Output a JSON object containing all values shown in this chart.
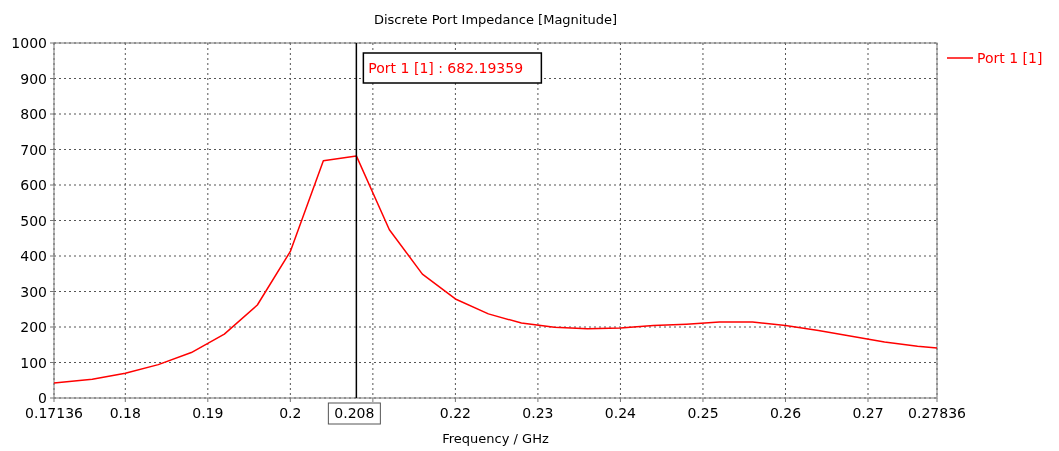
{
  "chart_data": {
    "type": "line",
    "title": "Discrete Port Impedance [Magnitude]",
    "xlabel": "Frequency / GHz",
    "x": [
      0.17136,
      0.176,
      0.18,
      0.184,
      0.188,
      0.192,
      0.196,
      0.2,
      0.204,
      0.208,
      0.212,
      0.216,
      0.22,
      0.224,
      0.228,
      0.232,
      0.236,
      0.24,
      0.244,
      0.248,
      0.252,
      0.256,
      0.26,
      0.264,
      0.268,
      0.272,
      0.276,
      0.27836
    ],
    "series": [
      {
        "name": "Port 1 [1]",
        "color": "#ff0000",
        "values": [
          42,
          53,
          70,
          94,
          128,
          180,
          262,
          413,
          668,
          682,
          474,
          349,
          279,
          237,
          211,
          199,
          195,
          197,
          204,
          208,
          214,
          214,
          204,
          190,
          174,
          158,
          146,
          141
        ]
      }
    ],
    "xlim": [
      0.17136,
      0.27836
    ],
    "ylim": [
      0,
      1000
    ],
    "xticks": [
      0.17136,
      0.18,
      0.19,
      0.2,
      {
        "value": 0.21,
        "label": null
      },
      0.22,
      0.23,
      0.24,
      0.25,
      0.26,
      0.27,
      0.27836
    ],
    "yticks": [
      0,
      100,
      200,
      300,
      400,
      500,
      600,
      700,
      800,
      900,
      1000
    ],
    "ref_lines": [
      {
        "axis": "x",
        "value": 0.208,
        "label": "0.208",
        "color": "#000000"
      }
    ],
    "annotations": [
      "Port 1 [1] : 682.19359"
    ],
    "grid": true,
    "legend": "top right",
    "line_style": "solid",
    "marker": "none"
  }
}
